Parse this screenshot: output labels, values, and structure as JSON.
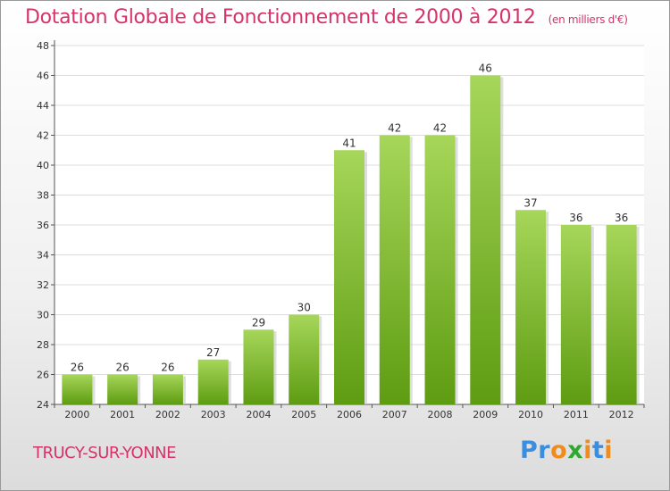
{
  "header": {
    "title": "Dotation Globale de Fonctionnement de 2000 à 2012",
    "unit": "(en milliers d'€)"
  },
  "footer": {
    "commune": "TRUCY-SUR-YONNE",
    "logo": "Proxiti"
  },
  "colors": {
    "title": "#d6336c",
    "bar_light": "#a6d65a",
    "bar_dark": "#5e9c12",
    "grid": "#dddddd"
  },
  "chart_data": {
    "type": "bar",
    "title": "Dotation Globale de Fonctionnement de 2000 à 2012",
    "subtitle": "(en milliers d'€)",
    "xlabel": "",
    "ylabel": "",
    "ylim": [
      24,
      48
    ],
    "yticks": [
      24,
      26,
      28,
      30,
      32,
      34,
      36,
      38,
      40,
      42,
      44,
      46,
      48
    ],
    "grid": true,
    "categories": [
      "2000",
      "2001",
      "2002",
      "2003",
      "2004",
      "2005",
      "2006",
      "2007",
      "2008",
      "2009",
      "2010",
      "2011",
      "2012"
    ],
    "values": [
      26,
      26,
      26,
      27,
      29,
      30,
      41,
      42,
      42,
      46,
      37,
      36,
      36
    ]
  }
}
